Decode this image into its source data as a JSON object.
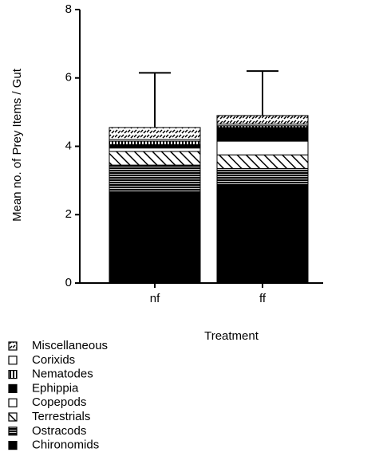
{
  "chart_data": {
    "type": "stacked-bar",
    "y_label": "Mean no. of Prey Items / Gut",
    "x_label": "Treatment",
    "categories": [
      "nf",
      "ff"
    ],
    "ylim": [
      0,
      8
    ],
    "yticks": [
      0,
      2,
      4,
      6,
      8
    ],
    "series": [
      {
        "name": "Chironomids",
        "color": "#000000",
        "pattern": "solid",
        "values": [
          2.65,
          2.85
        ]
      },
      {
        "name": "Ostracods",
        "color": "#000000",
        "pattern": "hlines",
        "values": [
          0.8,
          0.5
        ]
      },
      {
        "name": "Terrestrials",
        "color": "#000000",
        "pattern": "hatch",
        "values": [
          0.4,
          0.4
        ]
      },
      {
        "name": "Copepods",
        "color": "#000000",
        "pattern": "open",
        "values": [
          0.1,
          0.4
        ]
      },
      {
        "name": "Ephippia",
        "color": "#000000",
        "pattern": "solid",
        "values": [
          0.1,
          0.4
        ]
      },
      {
        "name": "Nematodes",
        "color": "#000000",
        "pattern": "vlines",
        "values": [
          0.1,
          0.05
        ]
      },
      {
        "name": "Corixids",
        "color": "#000000",
        "pattern": "open",
        "values": [
          0.05,
          0.05
        ]
      },
      {
        "name": "Miscellaneous",
        "color": "#000000",
        "pattern": "zigzag",
        "values": [
          0.35,
          0.25
        ]
      }
    ],
    "errors": [
      1.6,
      1.3
    ]
  }
}
